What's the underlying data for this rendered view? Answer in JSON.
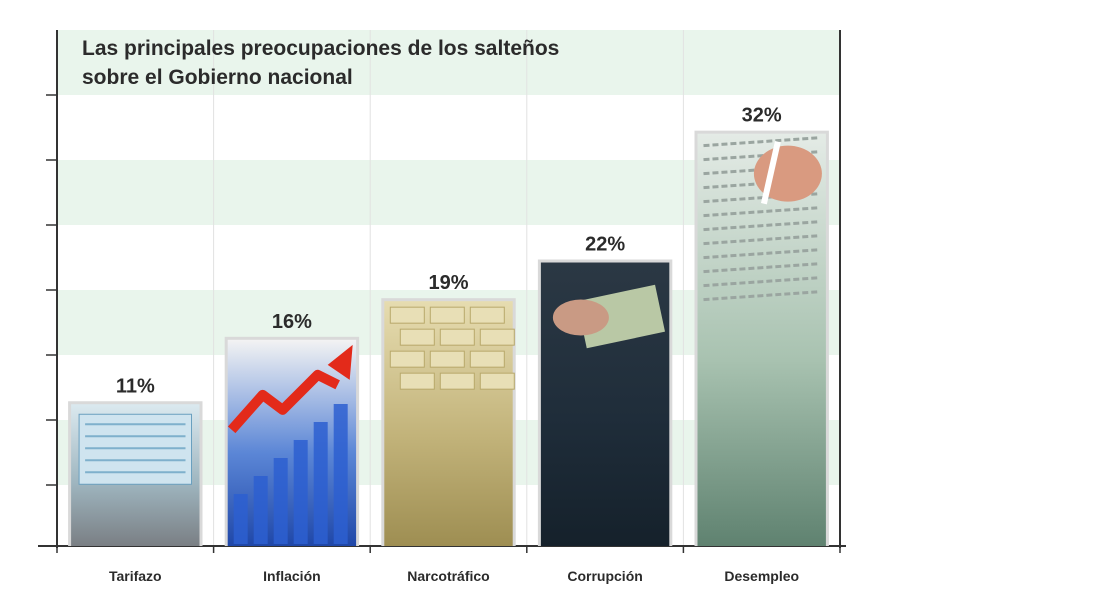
{
  "chart_data": {
    "type": "bar",
    "title": "Las principales preocupaciones de los salteños",
    "subtitle": "sobre el Gobierno nacional",
    "categories": [
      "Tarifazo",
      "Inflación",
      "Narcotráfico",
      "Corrupción",
      "Desempleo"
    ],
    "values": [
      11,
      16,
      19,
      22,
      32
    ],
    "value_labels": [
      "11%",
      "16%",
      "19%",
      "22%",
      "32%"
    ],
    "ylim": [
      0,
      35
    ],
    "grid": true,
    "bar_colors": [
      [
        "#dbe9ef",
        "#9fb6c0",
        "#7a7f84"
      ],
      [
        "#f3f3f3",
        "#5b86d6",
        "#1f47a8"
      ],
      [
        "#e6dcb0",
        "#c2b37a",
        "#9e8e52"
      ],
      [
        "#2b3844",
        "#1f2d3a",
        "#15212b"
      ],
      [
        "#e4ebe6",
        "#a8c2b0",
        "#5f8270"
      ]
    ],
    "band_color": "#e9f5ec"
  }
}
